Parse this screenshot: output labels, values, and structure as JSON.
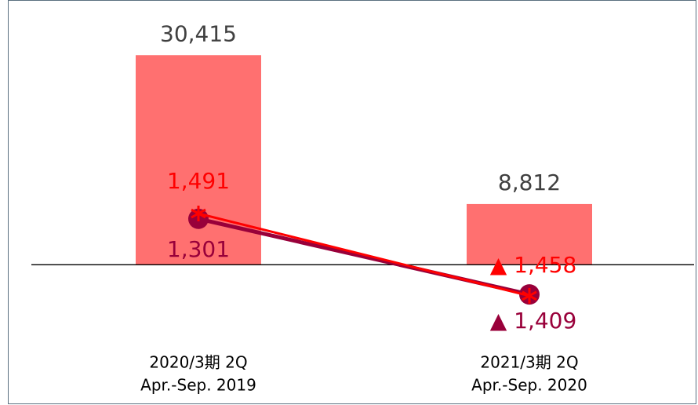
{
  "chart_data": {
    "type": "bar_line",
    "categories": [
      [
        "2020/3期 2Q",
        "Apr.-Sep. 2019"
      ],
      [
        "2021/3期 2Q",
        "Apr.-Sep. 2020"
      ]
    ],
    "values": [
      30415,
      8812
    ],
    "value_labels": [
      "30,415",
      "8,812"
    ],
    "color": "#ff7070",
    "ylim": [
      -15000,
      35000
    ],
    "y2lim": [
      -4050,
      8300
    ],
    "series": [
      {
        "color": "#ff0000",
        "marker": "asterisk",
        "axis": "y2",
        "values": [
          1491,
          -1458
        ],
        "value_labels": [
          "1,491",
          "▲ 1,458"
        ]
      },
      {
        "color": "#99003a",
        "marker": "circle",
        "axis": "y2",
        "values": [
          1301,
          -1409
        ],
        "value_labels": [
          "1,301",
          "▲ 1,409"
        ]
      }
    ]
  }
}
